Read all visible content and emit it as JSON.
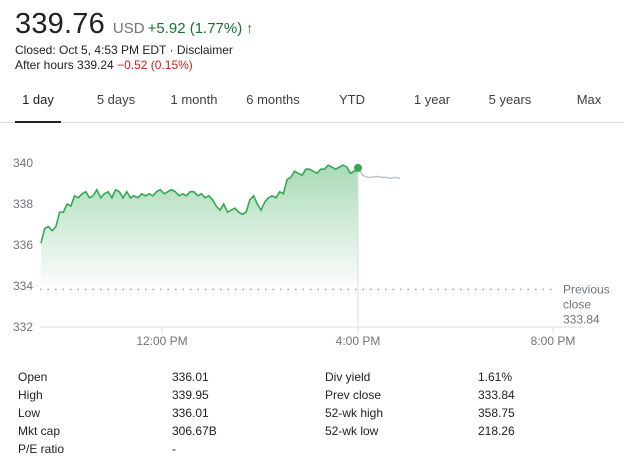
{
  "quote": {
    "price": "339.76",
    "currency": "USD",
    "change": "+5.92 (1.77%)",
    "arrow": "↑",
    "closed_text": "Closed: Oct 5, 4:53 PM EDT",
    "separator": "·",
    "disclaimer": "Disclaimer",
    "after_hours_label": "After hours 339.24",
    "after_hours_change": "−0.52 (0.15%)"
  },
  "tabs": [
    {
      "label": "1 day",
      "active": true
    },
    {
      "label": "5 days"
    },
    {
      "label": "1 month"
    },
    {
      "label": "6 months"
    },
    {
      "label": "YTD"
    },
    {
      "label": "1 year"
    },
    {
      "label": "5 years"
    },
    {
      "label": "Max"
    }
  ],
  "chart_data": {
    "type": "area",
    "y_ticks": [
      "340",
      "338",
      "336",
      "334",
      "332"
    ],
    "ylim": [
      332,
      341
    ],
    "x_ticks": [
      "12:00 PM",
      "4:00 PM",
      "8:00 PM"
    ],
    "previous_close": {
      "label_line1": "Previous",
      "label_line2": "close",
      "value": "333.84",
      "y": 333.84
    },
    "colors": {
      "line": "#34a853",
      "fill": "#34a853",
      "after_hours": "#bdc1c6",
      "prev_close": "#70757a",
      "marker": "#34a853"
    },
    "series": [
      {
        "values": [
          336.1,
          336.8,
          336.9,
          336.7,
          336.9,
          337.6,
          337.6,
          338.0,
          337.9,
          338.4,
          338.3,
          338.5,
          338.6,
          338.3,
          338.4,
          338.7,
          338.3,
          338.5,
          338.6,
          338.3,
          338.7,
          338.6,
          338.3,
          338.6,
          338.3,
          338.4,
          338.3,
          338.5,
          338.4,
          338.5,
          338.4,
          338.6,
          338.7,
          338.5,
          338.6,
          338.7,
          338.6,
          338.4,
          338.5,
          338.4,
          338.6,
          338.6,
          338.4,
          338.5,
          338.3,
          338.4,
          338.2,
          337.9,
          337.7,
          338.0,
          337.6,
          337.7,
          337.8,
          337.6,
          337.5,
          337.6,
          338.2,
          338.4,
          338.0,
          337.7,
          338.1,
          338.3,
          338.4,
          338.3,
          338.6,
          338.5,
          339.2,
          339.3,
          339.6,
          339.5,
          339.4,
          339.7,
          339.7,
          339.6,
          339.5,
          339.7,
          339.7,
          339.9,
          339.8,
          339.7,
          339.8,
          339.9,
          339.8,
          339.5,
          339.6,
          339.76
        ]
      },
      {
        "name": "after-hours",
        "values": [
          339.76,
          339.4,
          339.3,
          339.3,
          339.35,
          339.3,
          339.3,
          339.25,
          339.3,
          339.24
        ]
      }
    ]
  },
  "stats": {
    "left": [
      {
        "label": "Open",
        "value": "336.01"
      },
      {
        "label": "High",
        "value": "339.95"
      },
      {
        "label": "Low",
        "value": "336.01"
      },
      {
        "label": "Mkt cap",
        "value": "306.67B"
      },
      {
        "label": "P/E ratio",
        "value": "-"
      }
    ],
    "right": [
      {
        "label": "Div yield",
        "value": "1.61%"
      },
      {
        "label": "Prev close",
        "value": "333.84"
      },
      {
        "label": "52-wk high",
        "value": "358.75"
      },
      {
        "label": "52-wk low",
        "value": "218.26"
      }
    ]
  }
}
